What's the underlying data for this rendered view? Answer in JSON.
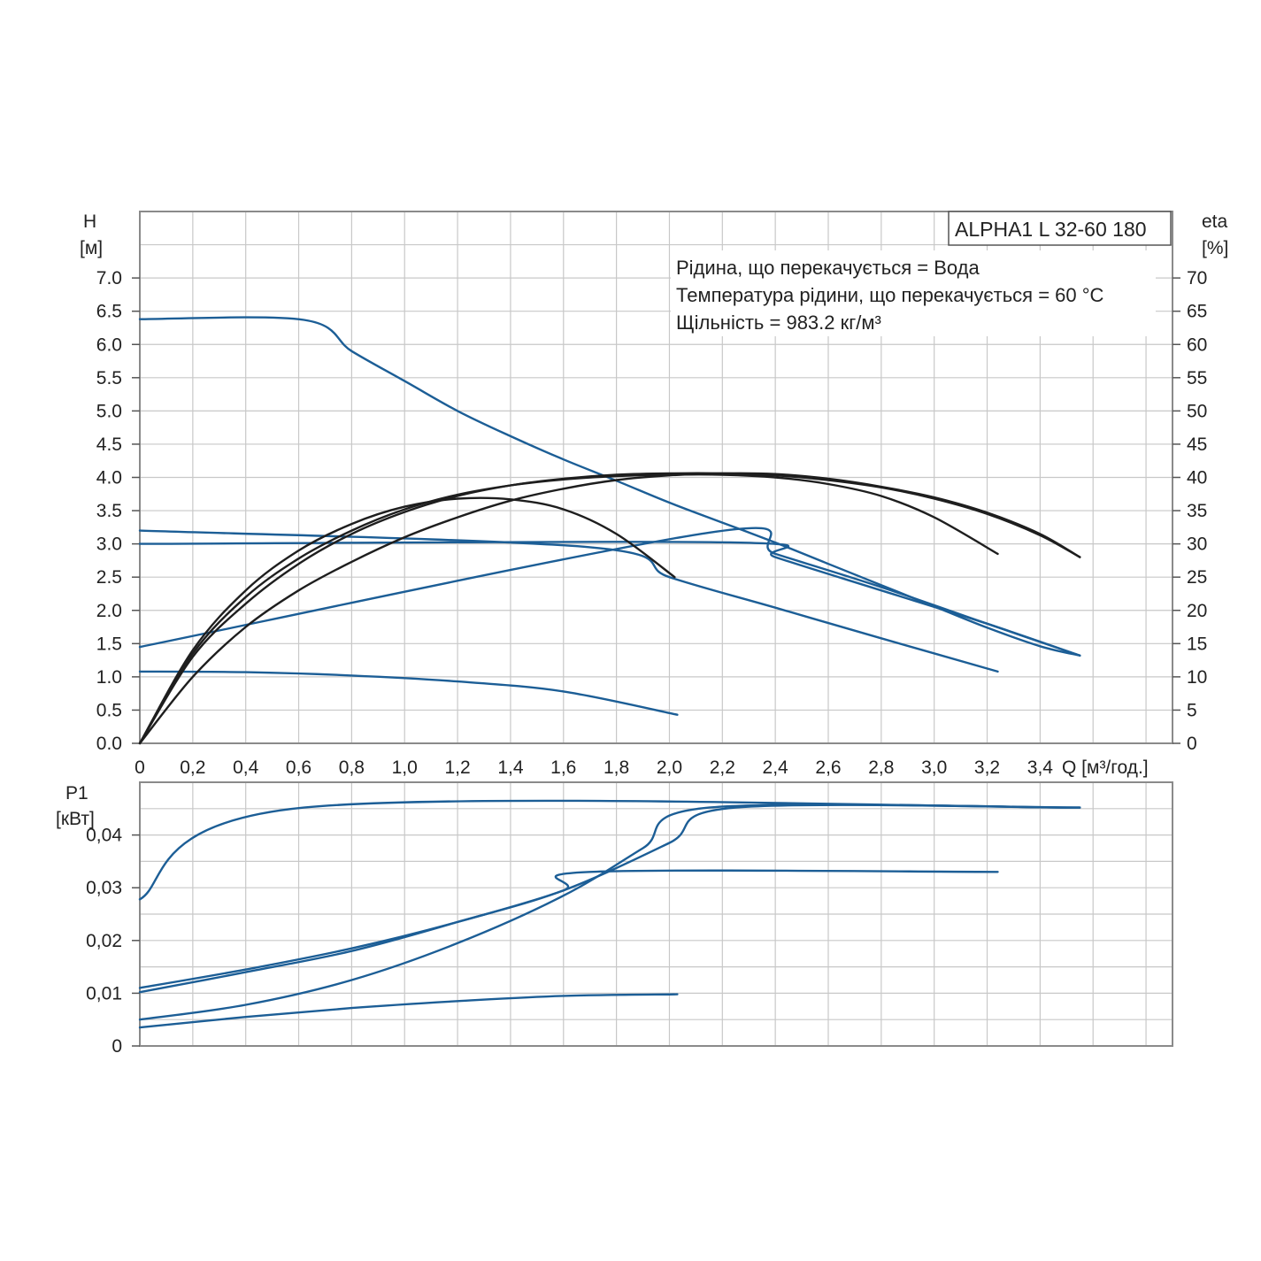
{
  "chart_data": [
    {
      "type": "line",
      "title": "ALPHA1 L 32-60 180",
      "info": [
        "Рідина, що перекачується = Вода",
        "Температура рідини, що перекачується = 60 °C",
        "Щільність = 983.2 кг/м³"
      ],
      "xlabel": "Q [м³/год.]",
      "x_ticks": [
        "0",
        "0,2",
        "0,4",
        "0,6",
        "0,8",
        "1,0",
        "1,2",
        "1,4",
        "1,6",
        "1,8",
        "2,0",
        "2,2",
        "2,4",
        "2,6",
        "2,8",
        "3,0",
        "3,2",
        "3,4"
      ],
      "xlim": [
        0,
        3.9
      ],
      "ylabel": "H",
      "ylabel_unit": "[м]",
      "y_ticks": [
        "0.0",
        "0.5",
        "1.0",
        "1.5",
        "2.0",
        "2.5",
        "3.0",
        "3.5",
        "4.0",
        "4.5",
        "5.0",
        "5.5",
        "6.0",
        "6.5",
        "7.0"
      ],
      "ylim": [
        0,
        8
      ],
      "y2label": "eta",
      "y2label_unit": "[%]",
      "y2_ticks": [
        "0",
        "5",
        "10",
        "15",
        "20",
        "25",
        "30",
        "35",
        "40",
        "45",
        "50",
        "55",
        "60",
        "65",
        "70"
      ],
      "y2lim": [
        0,
        80
      ],
      "head_color": "#1c5e96",
      "eff_color": "#1e1e1e",
      "series": [
        {
          "name": "H max",
          "kind": "head",
          "x": [
            0,
            0.62,
            0.8,
            1.0,
            1.2,
            1.4,
            1.6,
            1.8,
            2.0,
            2.2,
            2.4,
            2.6,
            2.8,
            3.0,
            3.2,
            3.4,
            3.55
          ],
          "y": [
            6.38,
            6.37,
            5.9,
            5.45,
            5.0,
            4.62,
            4.27,
            3.95,
            3.62,
            3.32,
            3.02,
            2.7,
            2.38,
            2.06,
            1.74,
            1.46,
            1.32
          ]
        },
        {
          "name": "H constant pressure",
          "kind": "head",
          "x": [
            0,
            1.7,
            2.0,
            2.4,
            2.8,
            3.24
          ],
          "y": [
            3.2,
            2.95,
            2.5,
            2.04,
            1.58,
            1.08
          ]
        },
        {
          "name": "H constant curve",
          "kind": "head",
          "x": [
            0,
            2.25,
            2.4,
            2.8,
            3.2,
            3.55
          ],
          "y": [
            3.0,
            3.02,
            2.8,
            2.3,
            1.8,
            1.32
          ]
        },
        {
          "name": "H proportional pressure",
          "kind": "head",
          "x": [
            0,
            2.15,
            2.4,
            2.8,
            3.2,
            3.55
          ],
          "y": [
            1.45,
            3.17,
            2.85,
            2.35,
            1.8,
            1.32
          ]
        },
        {
          "name": "H min",
          "kind": "head",
          "x": [
            0,
            0.4,
            0.8,
            1.2,
            1.6,
            2.03
          ],
          "y": [
            1.08,
            1.07,
            1.02,
            0.93,
            0.78,
            0.43
          ]
        },
        {
          "name": "eta max",
          "kind": "eff",
          "x": [
            0,
            0.2,
            0.4,
            0.6,
            0.8,
            1.0,
            1.2,
            1.4,
            1.6,
            1.8,
            2.0,
            2.2,
            2.4,
            2.6,
            2.8,
            3.0,
            3.2,
            3.4,
            3.55
          ],
          "y": [
            0,
            13,
            21,
            27,
            31.5,
            34.8,
            37.2,
            38.8,
            39.8,
            40.4,
            40.6,
            40.6,
            40.3,
            39.6,
            38.5,
            36.8,
            34.5,
            31.3,
            28
          ]
        },
        {
          "name": "eta constant pressure",
          "kind": "eff",
          "x": [
            0,
            0.2,
            0.4,
            0.6,
            0.8,
            1.0,
            1.2,
            1.4,
            1.6,
            1.8,
            2.0,
            2.2,
            2.4,
            2.6,
            2.8,
            3.0,
            3.24
          ],
          "y": [
            0,
            13.5,
            22,
            27.8,
            32,
            35.2,
            37.4,
            38.8,
            39.7,
            40.2,
            40.4,
            40.4,
            40.0,
            39.0,
            37.2,
            34,
            28.5
          ]
        },
        {
          "name": "eta proportional pressure",
          "kind": "eff",
          "x": [
            0,
            0.2,
            0.4,
            0.6,
            0.8,
            1.0,
            1.2,
            1.4,
            1.6,
            1.8,
            2.0,
            2.2,
            2.4,
            2.6,
            2.8,
            3.0,
            3.2,
            3.4,
            3.55
          ],
          "y": [
            0,
            10,
            17.5,
            23,
            27.3,
            31,
            34,
            36.5,
            38.3,
            39.6,
            40.3,
            40.6,
            40.5,
            39.8,
            38.6,
            37,
            34.7,
            31.5,
            28
          ]
        },
        {
          "name": "eta min",
          "kind": "eff",
          "x": [
            0,
            0.2,
            0.4,
            0.6,
            0.8,
            1.0,
            1.2,
            1.4,
            1.6,
            1.8,
            2.02
          ],
          "y": [
            0,
            14,
            23,
            29,
            33,
            35.6,
            36.8,
            36.7,
            35.2,
            31.5,
            25
          ]
        }
      ]
    },
    {
      "type": "line",
      "ylabel": "P1",
      "ylabel_unit": "[кВт]",
      "y_ticks": [
        "0",
        "0,01",
        "0,02",
        "0,03",
        "0,04"
      ],
      "ylim": [
        0,
        0.05
      ],
      "xlim": [
        0,
        3.9
      ],
      "color": "#1c5e96",
      "series": [
        {
          "name": "P1 max",
          "x": [
            0,
            0.62,
            3.55
          ],
          "y": [
            0.0278,
            0.0452,
            0.0452
          ]
        },
        {
          "name": "P1 constant pressure",
          "x": [
            0,
            0.4,
            0.8,
            1.2,
            1.6,
            1.7,
            3.24
          ],
          "y": [
            0.011,
            0.0145,
            0.0185,
            0.0235,
            0.0295,
            0.033,
            0.033
          ]
        },
        {
          "name": "P1 constant curve",
          "x": [
            0,
            0.4,
            0.8,
            1.2,
            1.6,
            2.0,
            2.25,
            3.55
          ],
          "y": [
            0.0102,
            0.014,
            0.018,
            0.0235,
            0.0295,
            0.0385,
            0.0452,
            0.0452
          ]
        },
        {
          "name": "P1 proportional pressure",
          "x": [
            0,
            0.4,
            0.8,
            1.2,
            1.6,
            1.9,
            2.15,
            3.55
          ],
          "y": [
            0.005,
            0.0078,
            0.0125,
            0.0195,
            0.0285,
            0.0375,
            0.0452,
            0.0452
          ]
        },
        {
          "name": "P1 min",
          "x": [
            0,
            0.4,
            0.8,
            1.2,
            1.6,
            2.03
          ],
          "y": [
            0.0035,
            0.0055,
            0.0072,
            0.0085,
            0.0095,
            0.0098
          ]
        }
      ]
    }
  ]
}
